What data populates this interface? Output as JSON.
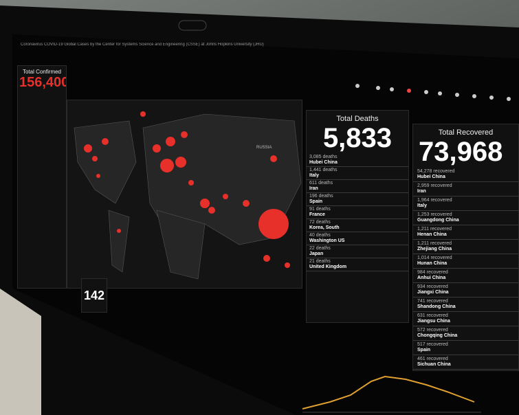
{
  "browser": {
    "title": "Coronavirus COVID-19 Global Cases by the Center for Systems Science and Engineering (CSSE) at Johns Hopkins University (JHU)"
  },
  "confirmed": {
    "label": "Total Confirmed",
    "value": "156,400"
  },
  "map": {
    "label": "RUSSIA"
  },
  "countries": {
    "value": "142"
  },
  "deaths": {
    "label": "Total Deaths",
    "value": "5,833",
    "rows": [
      {
        "count": "3,085 deaths",
        "place": "Hubei China"
      },
      {
        "count": "1,441 deaths",
        "place": "Italy"
      },
      {
        "count": "611 deaths",
        "place": "Iran"
      },
      {
        "count": "196 deaths",
        "place": "Spain"
      },
      {
        "count": "91 deaths",
        "place": "France"
      },
      {
        "count": "72 deaths",
        "place": "Korea, South"
      },
      {
        "count": "40 deaths",
        "place": "Washington US"
      },
      {
        "count": "22 deaths",
        "place": "Japan"
      },
      {
        "count": "21 deaths",
        "place": "United Kingdom"
      }
    ]
  },
  "recovered": {
    "label": "Total Recovered",
    "value": "73,968",
    "rows": [
      {
        "count": "54,278 recovered",
        "place": "Hubei China"
      },
      {
        "count": "2,959 recovered",
        "place": "Iran"
      },
      {
        "count": "1,964 recovered",
        "place": "Italy"
      },
      {
        "count": "1,253 recovered",
        "place": "Guangdong China"
      },
      {
        "count": "1,211 recovered",
        "place": "Henan China"
      },
      {
        "count": "1,211 recovered",
        "place": "Zhejiang China"
      },
      {
        "count": "1,014 recovered",
        "place": "Hunan China"
      },
      {
        "count": "984 recovered",
        "place": "Anhui China"
      },
      {
        "count": "934 recovered",
        "place": "Jiangxi China"
      },
      {
        "count": "741 recovered",
        "place": "Shandong China"
      },
      {
        "count": "631 recovered",
        "place": "Jiangsu China"
      },
      {
        "count": "572 recovered",
        "place": "Chongqing China"
      },
      {
        "count": "517 recovered",
        "place": "Spain"
      },
      {
        "count": "461 recovered",
        "place": "Sichuan China"
      }
    ]
  }
}
